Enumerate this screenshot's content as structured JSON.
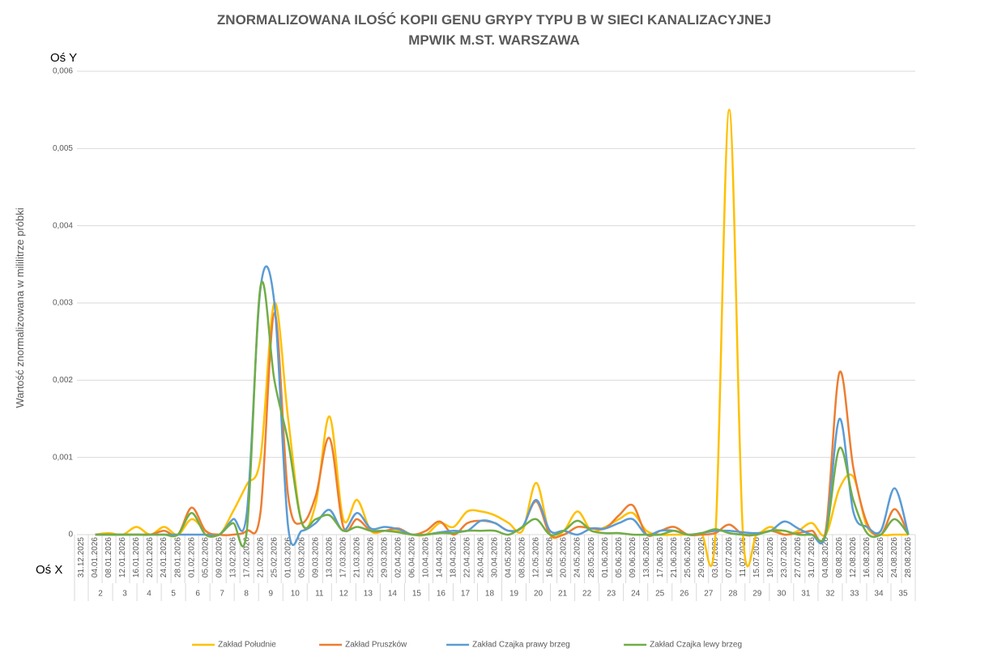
{
  "chart_data": {
    "type": "line",
    "title": [
      "ZNORMALIZOWANA ILOŚĆ KOPII GENU GRYPY TYPU B W SIECI KANALIZACYJNEJ",
      "MPWIK M.ST. WARSZAWA"
    ],
    "y_axis_corner_label": "Oś Y",
    "x_axis_corner_label": "Oś X",
    "y_label": "Wartość znormalizowana  w mililitrze próbki",
    "categories": [
      "31.12.2025",
      "04.01.2026",
      "08.01.2026",
      "12.01.2026",
      "16.01.2026",
      "20.01.2026",
      "24.01.2026",
      "28.01.2026",
      "01.02.2026",
      "05.02.2026",
      "09.02.2026",
      "13.02.2026",
      "17.02.2026",
      "21.02.2026",
      "25.02.2026",
      "01.03.2026",
      "05.03.2026",
      "09.03.2026",
      "13.03.2026",
      "17.03.2026",
      "21.03.2026",
      "25.03.2026",
      "29.03.2026",
      "02.04.2026",
      "06.04.2026",
      "10.04.2026",
      "14.04.2026",
      "18.04.2026",
      "22.04.2026",
      "26.04.2026",
      "30.04.2026",
      "04.05.2026",
      "08.05.2026",
      "12.05.2026",
      "16.05.2026",
      "20.05.2026",
      "24.05.2026",
      "28.05.2026",
      "01.06.2026",
      "05.06.2026",
      "09.06.2026",
      "13.06.2026",
      "17.06.2026",
      "21.06.2026",
      "25.06.2026",
      "29.06.2026",
      "03.07.2026",
      "07.07.2026",
      "11.07.2026",
      "15.07.2026",
      "19.07.2026",
      "23.07.2026",
      "27.07.2026",
      "31.07.2026",
      "04.08.2026",
      "08.08.2026",
      "12.08.2026",
      "16.08.2026",
      "20.08.2026",
      "24.08.2026",
      "28.08.2026"
    ],
    "week_labels": [
      2,
      3,
      4,
      5,
      6,
      7,
      8,
      9,
      10,
      11,
      12,
      13,
      14,
      15,
      16,
      17,
      18,
      19,
      20,
      21,
      22,
      23,
      24,
      25,
      26,
      27,
      28,
      29,
      30,
      31,
      32,
      33,
      34,
      35
    ],
    "ylim": [
      0,
      0.006
    ],
    "yticks": [
      0,
      {
        "value": 0.001,
        "label": "0,001"
      },
      {
        "value": 0.002,
        "label": "0,002"
      },
      {
        "value": 0.003,
        "label": "0,003"
      },
      {
        "value": 0.004,
        "label": "0,004"
      },
      {
        "value": 0.005,
        "label": "0,005"
      },
      {
        "value": 0.006,
        "label": "0,006"
      }
    ],
    "grid": true,
    "smooth": true,
    "legend": "bottom",
    "series": [
      {
        "name": "Zakład Południe",
        "color": "#FFC000",
        "values": [
          null,
          0,
          2e-05,
          0,
          0.0001,
          0,
          0.0001,
          0,
          0.0002,
          5e-05,
          0,
          0.0003,
          0.00065,
          0.001,
          0.003,
          0.0015,
          0.00015,
          0.0004,
          0.00153,
          0.0002,
          0.00045,
          5e-05,
          5e-05,
          5e-05,
          0,
          0,
          0.00015,
          0.0001,
          0.0003,
          0.0003,
          0.00025,
          0.00015,
          5e-05,
          0.00067,
          0,
          5e-05,
          0.0003,
          5e-05,
          0.0001,
          0.0002,
          0.00028,
          5e-05,
          0,
          0,
          0,
          0,
          0,
          0.0055,
          0,
          0,
          0.0001,
          0,
          5e-05,
          0.00015,
          0,
          0.0006,
          0.00075,
          0.0001,
          0,
          0,
          0
        ]
      },
      {
        "name": "Zakład Pruszków",
        "color": "#ED7D31",
        "values": [
          null,
          0,
          0,
          0,
          0,
          0,
          5e-05,
          0,
          0.00035,
          5e-05,
          0,
          0,
          5e-05,
          0.0003,
          0.00287,
          0.0005,
          0.00015,
          0.0005,
          0.00125,
          0.0001,
          0.0002,
          5e-05,
          5e-05,
          8e-05,
          0,
          5e-05,
          0.00017,
          0,
          0.00015,
          0.00018,
          0.00015,
          5e-05,
          0.0001,
          0.00043,
          0,
          0,
          0.0001,
          8e-05,
          8e-05,
          0.00025,
          0.00038,
          0,
          5e-05,
          0.0001,
          0,
          0,
          2e-05,
          0.00013,
          0,
          0,
          5e-05,
          0,
          2e-05,
          5e-05,
          5e-05,
          0.0021,
          0.00087,
          0.00015,
          0,
          0.00033,
          0
        ]
      },
      {
        "name": "Zakład Czajka prawy brzeg",
        "color": "#5B9BD5",
        "values": [
          null,
          0,
          0,
          0,
          0,
          0,
          0,
          0,
          0,
          0,
          0,
          0.0002,
          0.00028,
          0.0032,
          0.003,
          0.0001,
          5e-05,
          0.00015,
          0.00032,
          5e-05,
          0.00028,
          8e-05,
          0.0001,
          7e-05,
          0,
          0,
          3e-05,
          5e-05,
          5e-05,
          0.00018,
          0.00015,
          5e-05,
          0.0001,
          0.00045,
          5e-05,
          5e-05,
          0,
          8e-05,
          8e-05,
          0.00015,
          0.0002,
          0,
          5e-05,
          5e-05,
          0,
          2e-05,
          5e-05,
          5e-05,
          3e-05,
          2e-05,
          5e-05,
          0.00017,
          8e-05,
          0,
          0,
          0.0015,
          0.0003,
          0.0001,
          5e-05,
          0.0006,
          0
        ]
      },
      {
        "name": "Zakład Czajka lewy brzeg",
        "color": "#70AD47",
        "values": [
          null,
          0,
          0,
          0,
          0,
          0,
          0,
          0,
          0.00028,
          0,
          0,
          0.00015,
          5e-05,
          0.00322,
          0.002,
          0.0012,
          0.00015,
          0.0002,
          0.00025,
          5e-05,
          0.0001,
          5e-05,
          5e-05,
          3e-05,
          0,
          0,
          2e-05,
          2e-05,
          5e-05,
          5e-05,
          5e-05,
          0,
          0.0001,
          0.0002,
          0,
          5e-05,
          0.00018,
          5e-05,
          2e-05,
          2e-05,
          0,
          0,
          0,
          5e-05,
          0,
          2e-05,
          7e-05,
          2e-05,
          0,
          0,
          5e-05,
          5e-05,
          0,
          0,
          0,
          0.00112,
          0.00045,
          2e-05,
          0,
          0.0002,
          0
        ]
      }
    ]
  }
}
